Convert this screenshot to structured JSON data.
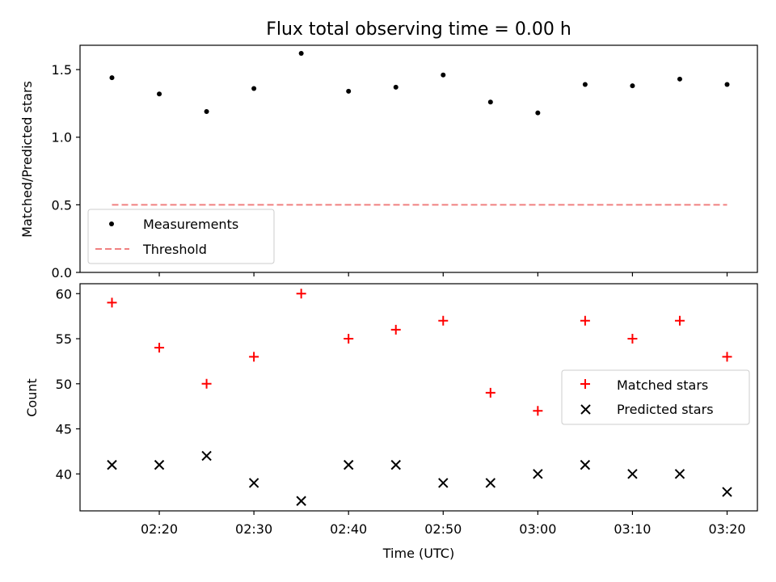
{
  "chart_data": [
    {
      "type": "scatter",
      "title": "Flux total observing time = 0.00 h",
      "xlabel": "",
      "ylabel": "Matched/Predicted stars",
      "ylim": [
        0,
        1.68
      ],
      "yticks": [
        0.0,
        0.5,
        1.0,
        1.5
      ],
      "ytick_labels": [
        "0.0",
        "0.5",
        "1.0",
        "1.5"
      ],
      "x": [
        "02:15",
        "02:20",
        "02:25",
        "02:30",
        "02:35",
        "02:40",
        "02:45",
        "02:50",
        "02:55",
        "03:00",
        "03:05",
        "03:10",
        "03:15",
        "03:20"
      ],
      "series": [
        {
          "name": "Measurements",
          "marker": "dot",
          "color": "#000000",
          "values": [
            1.44,
            1.32,
            1.19,
            1.36,
            1.62,
            1.34,
            1.37,
            1.46,
            1.26,
            1.18,
            1.39,
            1.38,
            1.43,
            1.39
          ]
        },
        {
          "name": "Threshold",
          "marker": "dashed-line",
          "color": "#f08080",
          "values": [
            0.5,
            0.5
          ]
        }
      ],
      "legend_position": "lower-left"
    },
    {
      "type": "scatter",
      "title": "",
      "xlabel": "Time (UTC)",
      "ylabel": "Count",
      "ylim": [
        35.9,
        61.1
      ],
      "yticks": [
        40,
        45,
        50,
        55,
        60
      ],
      "ytick_labels": [
        "40",
        "45",
        "50",
        "55",
        "60"
      ],
      "xtick_labels": [
        "02:20",
        "02:30",
        "02:40",
        "02:50",
        "03:00",
        "03:10",
        "03:20"
      ],
      "xtick_minutes": [
        20,
        30,
        40,
        50,
        60,
        70,
        80
      ],
      "x": [
        "02:15",
        "02:20",
        "02:25",
        "02:30",
        "02:35",
        "02:40",
        "02:45",
        "02:50",
        "02:55",
        "03:00",
        "03:05",
        "03:10",
        "03:15",
        "03:20"
      ],
      "series": [
        {
          "name": "Matched stars",
          "marker": "plus",
          "color": "#ff0000",
          "values": [
            59,
            54,
            50,
            53,
            60,
            55,
            56,
            57,
            49,
            47,
            57,
            55,
            57,
            53
          ]
        },
        {
          "name": "Predicted stars",
          "marker": "x",
          "color": "#000000",
          "values": [
            41,
            41,
            42,
            39,
            37,
            41,
            41,
            39,
            39,
            40,
            41,
            40,
            40,
            38
          ]
        }
      ],
      "legend_position": "center-right"
    }
  ]
}
